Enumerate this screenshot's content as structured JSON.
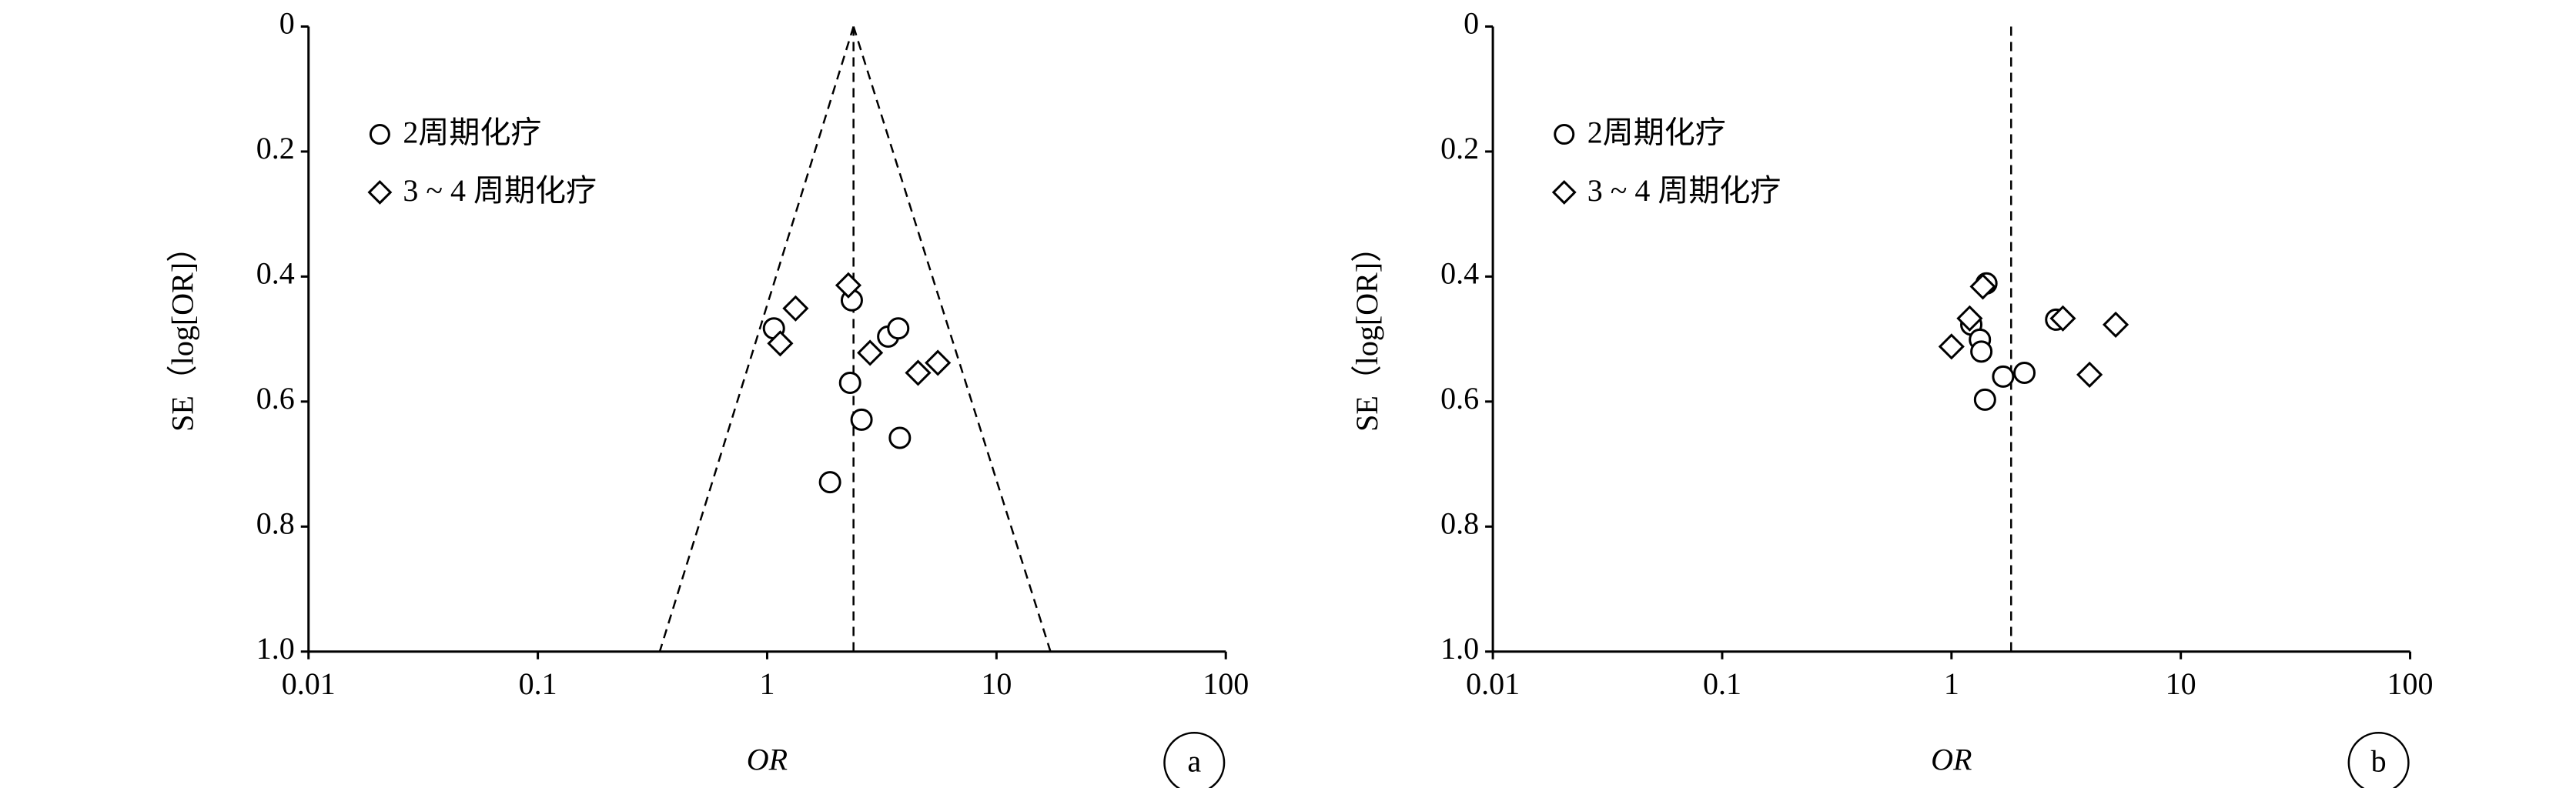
{
  "chart_data": [
    {
      "type": "scatter",
      "xlabel": "OR",
      "ylabel": "SE（log[OR]）",
      "panel_label": "a",
      "xscale": "log",
      "xlim": [
        0.01,
        100
      ],
      "xticks": [
        0.01,
        0.1,
        1,
        10,
        100
      ],
      "ylim": [
        0,
        1
      ],
      "y_reversed": true,
      "yticks": [
        0,
        0.2,
        0.4,
        0.6,
        0.8,
        {
          "value": 1,
          "label": "1.0"
        }
      ],
      "legend": "upper left",
      "reference_line": 2.38,
      "funnel_limits": [
        0.34,
        17.2
      ],
      "series": [
        {
          "name": "2周期化疗",
          "marker": "circle",
          "color": "#000000",
          "x": [
            1.07,
            2.34,
            3.37,
            3.73,
            2.3,
            2.58,
            3.79,
            1.88
          ],
          "values": [
            0.483,
            0.438,
            0.496,
            0.483,
            0.57,
            0.629,
            0.658,
            0.729
          ]
        },
        {
          "name": "3 ~ 4 周期化疗",
          "marker": "diamond",
          "color": "#000000",
          "x": [
            2.26,
            1.33,
            1.14,
            2.81,
            4.55,
            5.55
          ],
          "values": [
            0.414,
            0.451,
            0.507,
            0.522,
            0.554,
            0.538
          ]
        }
      ]
    },
    {
      "type": "scatter",
      "xlabel": "OR",
      "ylabel": "SE（log[OR]）",
      "panel_label": "b",
      "xscale": "log",
      "xlim": [
        0.01,
        100
      ],
      "xticks": [
        0.01,
        0.1,
        1,
        10,
        100
      ],
      "ylim": [
        0,
        1
      ],
      "y_reversed": true,
      "yticks": [
        0,
        0.2,
        0.4,
        0.6,
        0.8,
        {
          "value": 1,
          "label": "1.0"
        }
      ],
      "legend": "upper left",
      "reference_line": 1.82,
      "series": [
        {
          "name": "2周期化疗",
          "marker": "circle",
          "color": "#000000",
          "x": [
            1.42,
            1.22,
            1.33,
            1.35,
            1.68,
            2.08,
            1.4,
            2.86
          ],
          "values": [
            0.411,
            0.477,
            0.501,
            0.52,
            0.56,
            0.554,
            0.597,
            0.469
          ]
        },
        {
          "name": "3 ~ 4 周期化疗",
          "marker": "diamond",
          "color": "#000000",
          "x": [
            1.37,
            1.2,
            1.0,
            3.06,
            5.2,
            4.0
          ],
          "values": [
            0.416,
            0.467,
            0.512,
            0.467,
            0.477,
            0.557
          ]
        }
      ]
    }
  ]
}
